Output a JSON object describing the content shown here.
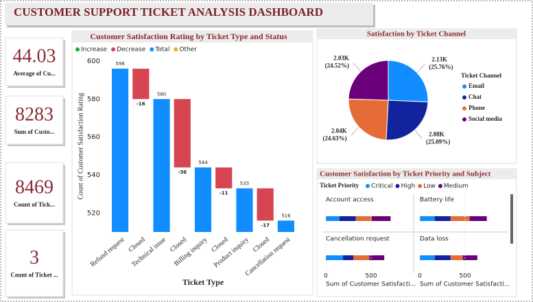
{
  "header": {
    "title": "CUSTOMER SUPPORT TICKET ANALYSIS DASHBOARD"
  },
  "cards": [
    {
      "value": 44.03,
      "label": "Average of Cu..."
    },
    {
      "value": 8283,
      "label": "Sum of Custo..."
    },
    {
      "value": 8469,
      "label": "Count of Tick..."
    },
    {
      "value": 3,
      "label": "Count of Ticket ..."
    }
  ],
  "chart_data": [
    {
      "type": "waterfall",
      "title": "Customer Satisfaction Rating by Ticket Type and Status",
      "legend": [
        {
          "name": "Increase",
          "color": "#1aab40"
        },
        {
          "name": "Decrease",
          "color": "#d64550"
        },
        {
          "name": "Total",
          "color": "#118dff"
        },
        {
          "name": "Other",
          "color": "#e8b400"
        }
      ],
      "categories": [
        "Refund request",
        "Closed",
        "Technical issue",
        "Closed",
        "Billing inquiry",
        "Closed",
        "Product inquiry",
        "Closed",
        "Cancellation request"
      ],
      "values": [
        596,
        -16,
        580,
        -36,
        544,
        -11,
        533,
        -17,
        516
      ],
      "ylim": [
        510,
        600
      ],
      "yticks": [
        520,
        540,
        560,
        580,
        600
      ],
      "xlabel": "Ticket Type",
      "ylabel": "Count of Customer Satisfaction Rating"
    },
    {
      "type": "pie",
      "title": "Satisfaction by Ticket Channel",
      "legend_title": "Ticket Channel",
      "categories": [
        "Email",
        "Chat",
        "Phone",
        "Social media"
      ],
      "values": [
        2130,
        2080,
        2040,
        2030
      ],
      "value_labels": [
        "2.13K",
        "2.08K",
        "2.04K",
        "2.03K"
      ],
      "percent_labels": [
        "(25.76%)",
        "(25.09%)",
        "(24.63%)",
        "(24.52%)"
      ],
      "colors": [
        "#118dff",
        "#12239e",
        "#e66c37",
        "#6b007b"
      ]
    },
    {
      "type": "stacked-bar-multiples",
      "title": "Customer Satisfaction by Ticket Priority and Subject",
      "legend_title": "Ticket Priority",
      "categories": [
        "Account access",
        "Battery life",
        "Cancellation request",
        "Data loss"
      ],
      "series": [
        {
          "name": "Critical",
          "color": "#118dff",
          "values": [
            150,
            165,
            190,
            165
          ]
        },
        {
          "name": "High",
          "color": "#12239e",
          "values": [
            180,
            175,
            115,
            175
          ]
        },
        {
          "name": "Low",
          "color": "#e66c37",
          "values": [
            175,
            210,
            175,
            135
          ]
        },
        {
          "name": "Medium",
          "color": "#6b007b",
          "values": [
            210,
            190,
            165,
            160
          ]
        }
      ],
      "xlim": [
        0,
        880
      ],
      "xticks": [
        0,
        500
      ],
      "xlabel": "Sum of Customer Satisfacti..."
    }
  ]
}
